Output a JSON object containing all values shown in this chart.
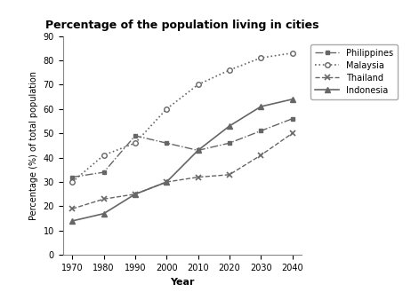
{
  "title": "Percentage of the population living in cities",
  "xlabel": "Year",
  "ylabel": "Percentage (%) of total population",
  "years": [
    1970,
    1980,
    1990,
    2000,
    2010,
    2020,
    2030,
    2040
  ],
  "philippines": [
    32,
    34,
    49,
    46,
    43,
    46,
    51,
    56
  ],
  "malaysia": [
    30,
    41,
    46,
    60,
    70,
    76,
    81,
    83
  ],
  "thailand": [
    19,
    23,
    25,
    30,
    32,
    33,
    41,
    50
  ],
  "indonesia": [
    14,
    17,
    25,
    30,
    43,
    53,
    61,
    64
  ],
  "ylim": [
    0,
    90
  ],
  "yticks": [
    0,
    10,
    20,
    30,
    40,
    50,
    60,
    70,
    80,
    90
  ],
  "xticks": [
    1970,
    1980,
    1990,
    2000,
    2010,
    2020,
    2030,
    2040
  ],
  "line_color": "#666666",
  "background_color": "#ffffff"
}
